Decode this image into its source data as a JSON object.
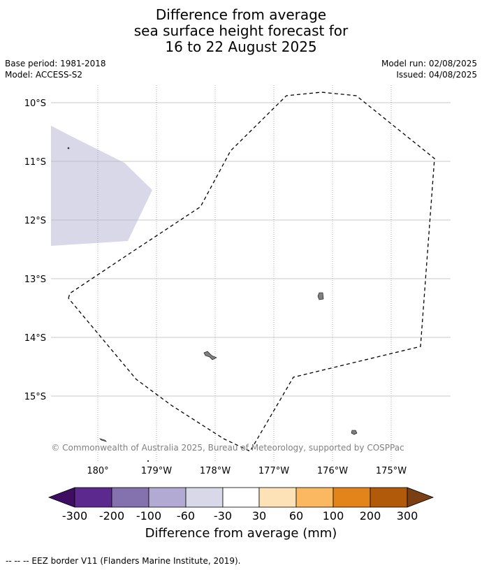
{
  "title": {
    "line1": "Difference from average",
    "line2": "sea surface height forecast for",
    "line3": "16 to 22 August 2025"
  },
  "meta": {
    "base_period": "Base period: 1981-2018",
    "model": "Model: ACCESS-S2",
    "model_run": "Model run: 02/08/2025",
    "issued": "Issued: 04/08/2025"
  },
  "map": {
    "lat_labels": [
      "10°S",
      "11°S",
      "12°S",
      "13°S",
      "14°S",
      "15°S"
    ],
    "lon_labels": [
      "180°",
      "179°W",
      "178°W",
      "177°W",
      "176°W",
      "175°W"
    ],
    "copyright": "© Commonwealth of Australia 2025, Bureau of Meteorology, supported by COSPPac",
    "anomaly_fill_color": "#d8d8e9",
    "land_color": "#808080",
    "eez_line_style": "dashed"
  },
  "colorbar": {
    "title": "Difference from average (mm)",
    "tick_labels": [
      "-300",
      "-200",
      "-100",
      "-60",
      "-30",
      "30",
      "60",
      "100",
      "200",
      "300"
    ],
    "colors": [
      "#3f0e62",
      "#5c2a8f",
      "#8472ae",
      "#b2aad2",
      "#d8d8e9",
      "#ffffff",
      "#fde2b8",
      "#fbb860",
      "#e3841b",
      "#b15a0a",
      "#7a3f12"
    ]
  },
  "footnote": "--  --  -- EEZ border V11 (Flanders Marine Institute, 2019)."
}
